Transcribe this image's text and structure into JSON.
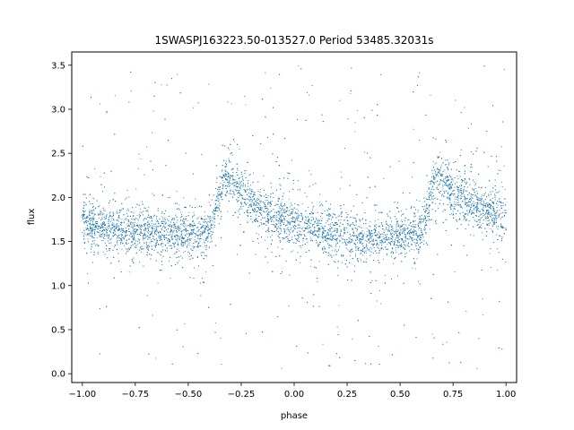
{
  "chart_data": {
    "type": "scatter",
    "title": "1SWASPJ163223.50-013527.0 Period 53485.32031s",
    "xlabel": "phase",
    "ylabel": "flux",
    "xlim": [
      -1.05,
      1.05
    ],
    "ylim": [
      -0.1,
      3.65
    ],
    "xticks": [
      -1.0,
      -0.75,
      -0.5,
      -0.25,
      0.0,
      0.25,
      0.5,
      0.75,
      1.0
    ],
    "xtick_labels": [
      "−1.00",
      "−0.75",
      "−0.50",
      "−0.25",
      "0.00",
      "0.25",
      "0.50",
      "0.75",
      "1.00"
    ],
    "yticks": [
      0.0,
      0.5,
      1.0,
      1.5,
      2.0,
      2.5,
      3.0,
      3.5
    ],
    "ytick_labels": [
      "0.0",
      "0.5",
      "1.0",
      "1.5",
      "2.0",
      "2.5",
      "3.0",
      "3.5"
    ],
    "grid": false,
    "legend": "none",
    "point_color": "#1f77b4",
    "series": [
      {
        "x_range": [
          -1.0,
          1.0
        ],
        "light_curve": {
          "phase": [
            -1.0,
            -0.75,
            -0.55,
            -0.45,
            -0.4,
            -0.36,
            -0.33,
            -0.3,
            -0.25,
            -0.15,
            0.0,
            0.15,
            0.3,
            0.55,
            0.6,
            0.64,
            0.67,
            0.7,
            0.75,
            0.85,
            1.0
          ],
          "flux_median": [
            1.7,
            1.62,
            1.58,
            1.57,
            1.62,
            1.95,
            2.25,
            2.2,
            2.05,
            1.85,
            1.7,
            1.6,
            1.55,
            1.57,
            1.62,
            1.95,
            2.25,
            2.2,
            2.05,
            1.9,
            1.75
          ]
        }
      }
    ]
  }
}
